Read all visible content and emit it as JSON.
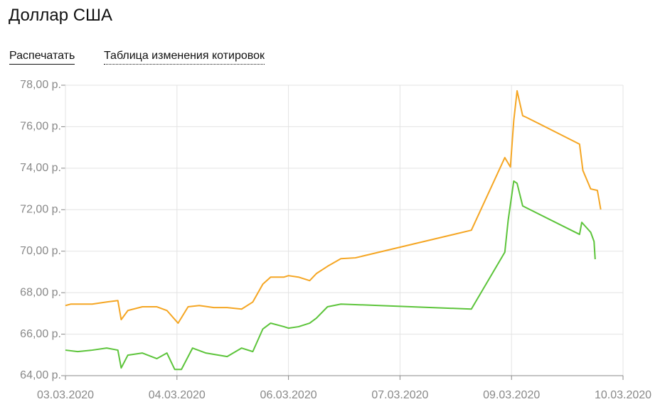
{
  "header": {
    "title": "Доллар США",
    "links": [
      "Распечатать",
      "Таблица изменения котировок"
    ]
  },
  "chart_data": {
    "type": "line",
    "xlim": [
      0,
      5
    ],
    "xticks": [
      {
        "value": 0,
        "label": "03.03.2020"
      },
      {
        "value": 1,
        "label": "04.03.2020"
      },
      {
        "value": 2,
        "label": "06.03.2020"
      },
      {
        "value": 3,
        "label": "07.03.2020"
      },
      {
        "value": 4,
        "label": "09.03.2020"
      },
      {
        "value": 5,
        "label": "10.03.2020"
      }
    ],
    "ylim": [
      64,
      78
    ],
    "yticks": [
      {
        "value": 64,
        "label": "64,00 р."
      },
      {
        "value": 66,
        "label": "66,00 р."
      },
      {
        "value": 68,
        "label": "68,00 р."
      },
      {
        "value": 70,
        "label": "70,00 р."
      },
      {
        "value": 72,
        "label": "72,00 р."
      },
      {
        "value": 74,
        "label": "74,00 р."
      },
      {
        "value": 76,
        "label": "76,00 р."
      },
      {
        "value": 78,
        "label": "78,00 р."
      }
    ],
    "grid": true,
    "series": [
      {
        "color": "#f5a623",
        "x": [
          0,
          0.05,
          0.24,
          0.37,
          0.47,
          0.5,
          0.56,
          0.69,
          0.82,
          0.91,
          1.01,
          1.1,
          1.2,
          1.33,
          1.45,
          1.58,
          1.68,
          1.77,
          1.84,
          1.96,
          2.0,
          2.09,
          2.19,
          2.25,
          2.35,
          2.47,
          2.6,
          3.64,
          3.94,
          3.99,
          4.02,
          4.05,
          4.1,
          4.13,
          4.61,
          4.64,
          4.71,
          4.77,
          4.8
        ],
        "values": [
          67.38,
          67.45,
          67.45,
          67.55,
          67.62,
          66.7,
          67.14,
          67.32,
          67.32,
          67.14,
          66.53,
          67.32,
          67.38,
          67.28,
          67.28,
          67.21,
          67.55,
          68.41,
          68.75,
          68.75,
          68.82,
          68.75,
          68.58,
          68.92,
          69.27,
          69.64,
          69.68,
          71.01,
          74.51,
          74.06,
          76.29,
          77.73,
          76.53,
          76.46,
          75.16,
          73.89,
          73.0,
          72.93,
          72.01
        ]
      },
      {
        "color": "#5cc43a",
        "x": [
          0,
          0.11,
          0.24,
          0.37,
          0.47,
          0.5,
          0.56,
          0.69,
          0.82,
          0.91,
          0.98,
          1.04,
          1.14,
          1.26,
          1.45,
          1.58,
          1.68,
          1.77,
          1.84,
          1.96,
          2.0,
          2.09,
          2.19,
          2.25,
          2.35,
          2.47,
          3.64,
          3.94,
          3.97,
          4.02,
          4.05,
          4.1,
          4.61,
          4.63,
          4.71,
          4.74,
          4.75
        ],
        "values": [
          65.23,
          65.16,
          65.23,
          65.33,
          65.23,
          64.37,
          64.99,
          65.09,
          64.82,
          65.09,
          64.3,
          64.3,
          65.33,
          65.09,
          64.92,
          65.33,
          65.16,
          66.25,
          66.53,
          66.36,
          66.29,
          66.36,
          66.53,
          66.77,
          67.32,
          67.45,
          67.21,
          69.95,
          71.49,
          73.38,
          73.27,
          72.18,
          70.81,
          71.39,
          70.91,
          70.47,
          69.61
        ]
      }
    ]
  }
}
